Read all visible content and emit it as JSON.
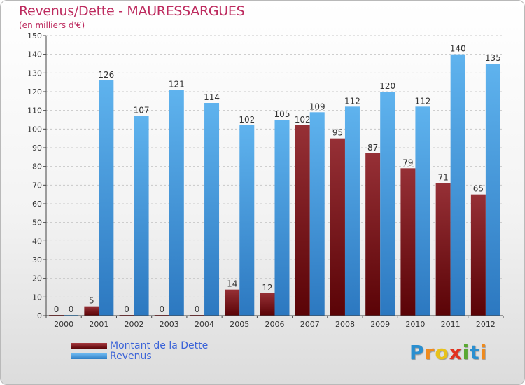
{
  "header": {
    "title": "Revenus/Dette - MAURESSARGUES",
    "subtitle": "(en milliers d'€)"
  },
  "legend": [
    {
      "label": "Montant de la Dette",
      "color": "#6e0f14"
    },
    {
      "label": "Revenus",
      "color": "#4aa0e6"
    }
  ],
  "brand": {
    "letters": [
      "P",
      "r",
      "o",
      "x",
      "i",
      "t",
      "i"
    ]
  },
  "chart_data": {
    "type": "bar",
    "categories": [
      "2000",
      "2001",
      "2002",
      "2003",
      "2004",
      "2005",
      "2006",
      "2007",
      "2008",
      "2009",
      "2010",
      "2011",
      "2012"
    ],
    "series": [
      {
        "name": "Montant de la Dette",
        "color": "#8b2a30",
        "values": [
          0,
          5,
          0,
          0,
          0,
          14,
          12,
          102,
          95,
          87,
          79,
          71,
          65
        ]
      },
      {
        "name": "Revenus",
        "color": "#4aa0e6",
        "values": [
          0,
          126,
          107,
          121,
          114,
          102,
          105,
          109,
          112,
          120,
          112,
          140,
          135
        ]
      }
    ],
    "ylim": [
      0,
      150
    ],
    "yticks": [
      0,
      10,
      20,
      30,
      40,
      50,
      60,
      70,
      80,
      90,
      100,
      110,
      120,
      130,
      140,
      150
    ],
    "title": "Revenus/Dette - MAURESSARGUES",
    "ylabel": "(en milliers d'€)",
    "xlabel": "",
    "grid": true
  }
}
